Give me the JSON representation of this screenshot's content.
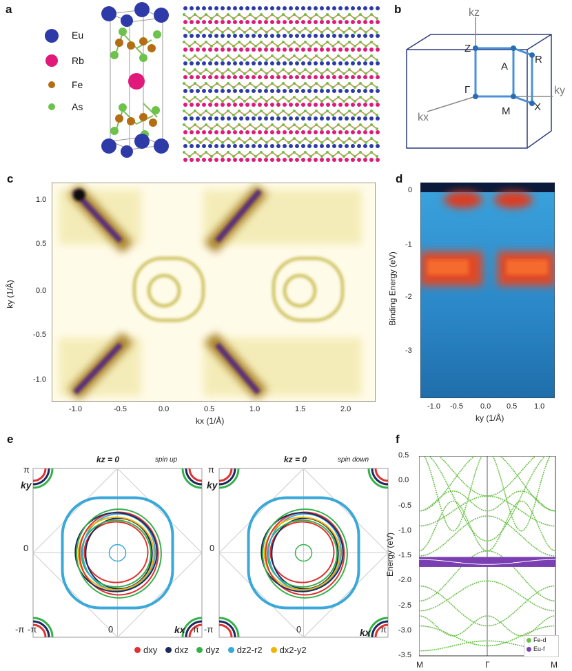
{
  "panels": {
    "a": {
      "label": "a",
      "legend": [
        {
          "name": "Eu",
          "color": "#2d3aa8"
        },
        {
          "name": "Rb",
          "color": "#e0197a"
        },
        {
          "name": "Fe",
          "color": "#b46d12"
        },
        {
          "name": "As",
          "color": "#6cc24a"
        }
      ]
    },
    "b": {
      "label": "b",
      "axes": {
        "kz": "kz",
        "ky": "ky",
        "kx": "kx"
      },
      "points": {
        "Z": "Z",
        "A": "A",
        "R": "R",
        "Gamma": "Γ",
        "M": "M",
        "X": "X"
      }
    },
    "c": {
      "label": "c",
      "xlabel": "kx (1/Å)",
      "ylabel": "ky (1/Å)",
      "xticks": [
        "-1.0",
        "-0.5",
        "0.0",
        "0.5",
        "1.0",
        "1.5",
        "2.0"
      ],
      "yticks": [
        "1.0",
        "0.5",
        "0.0",
        "-0.5",
        "-1.0"
      ]
    },
    "d": {
      "label": "d",
      "xlabel": "ky (1/Å)",
      "ylabel": "Binding Energy (eV)",
      "xticks": [
        "-1.0",
        "-0.5",
        "0.0",
        "0.5",
        "1.0"
      ],
      "yticks": [
        "0",
        "-1",
        "-2",
        "-3"
      ]
    },
    "e": {
      "label": "e",
      "left": {
        "title": "kz = 0",
        "subtitle": "spin up"
      },
      "right": {
        "title": "kz = 0",
        "subtitle": "spin down"
      },
      "ticks": {
        "pi": "π",
        "zero": "0",
        "negpi": "-π",
        "negpi_x": "-π",
        "ky": "ky",
        "kx": "kx"
      },
      "legend": [
        {
          "name": "dxy",
          "color": "#e03131"
        },
        {
          "name": "dxz",
          "color": "#1f2a5c"
        },
        {
          "name": "dyz",
          "color": "#35b04a"
        },
        {
          "name": "dz2-r2",
          "color": "#3aa8d8"
        },
        {
          "name": "dx2-y2",
          "color": "#f2b400"
        }
      ]
    },
    "f": {
      "label": "f",
      "ylabel": "Energy (eV)",
      "yticks": [
        "0.5",
        "0.0",
        "-0.5",
        "-1.0",
        "-1.5",
        "-2.0",
        "-2.5",
        "-3.0",
        "-3.5"
      ],
      "xticks": [
        "M",
        "Γ",
        "M"
      ],
      "legend": [
        {
          "name": "Fe-d",
          "color": "#6cc24a"
        },
        {
          "name": "Eu-f",
          "color": "#7a3fb0"
        }
      ]
    }
  }
}
